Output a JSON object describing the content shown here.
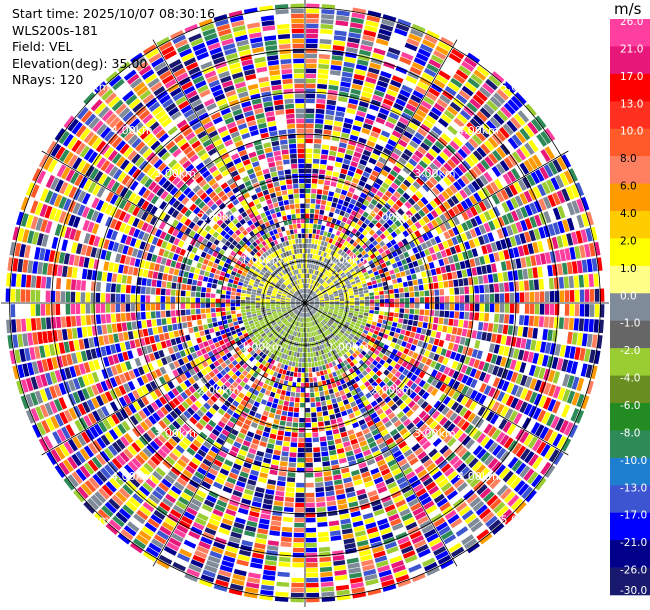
{
  "info": {
    "start_time": "Start time: 2025/10/07 08:30:16",
    "site": "WLS200s-181",
    "field": "Field: VEL",
    "elevation": "Elevation(deg): 35.00",
    "nrays": "NRays: 120"
  },
  "range_labels": [
    "1.00km",
    "2.00km",
    "3.00km",
    "4.00km",
    "5.00km"
  ],
  "colorbar": {
    "unit": "m/s",
    "ticks": [
      "26.0",
      "21.0",
      "17.0",
      "13.0",
      "10.0",
      "8.0",
      "6.0",
      "4.0",
      "2.0",
      "1.0",
      "0.0",
      "-1.0",
      "-2.0",
      "-4.0",
      "-6.0",
      "-8.0",
      "-10.0",
      "-13.0",
      "-17.0",
      "-21.0",
      "-26.0",
      "-30.0"
    ],
    "colors": [
      "#ff3f9f",
      "#e8187a",
      "#ff0000",
      "#ff3020",
      "#ff5a2a",
      "#ff8060",
      "#ff9a00",
      "#ffcc00",
      "#ffff00",
      "#ffff88",
      "#7f8b99",
      "#666666",
      "#9acd32",
      "#6b8e23",
      "#228b22",
      "#2e8b57",
      "#1e7fd0",
      "#3d55d0",
      "#0000ff",
      "#00008b",
      "#191970"
    ]
  }
}
